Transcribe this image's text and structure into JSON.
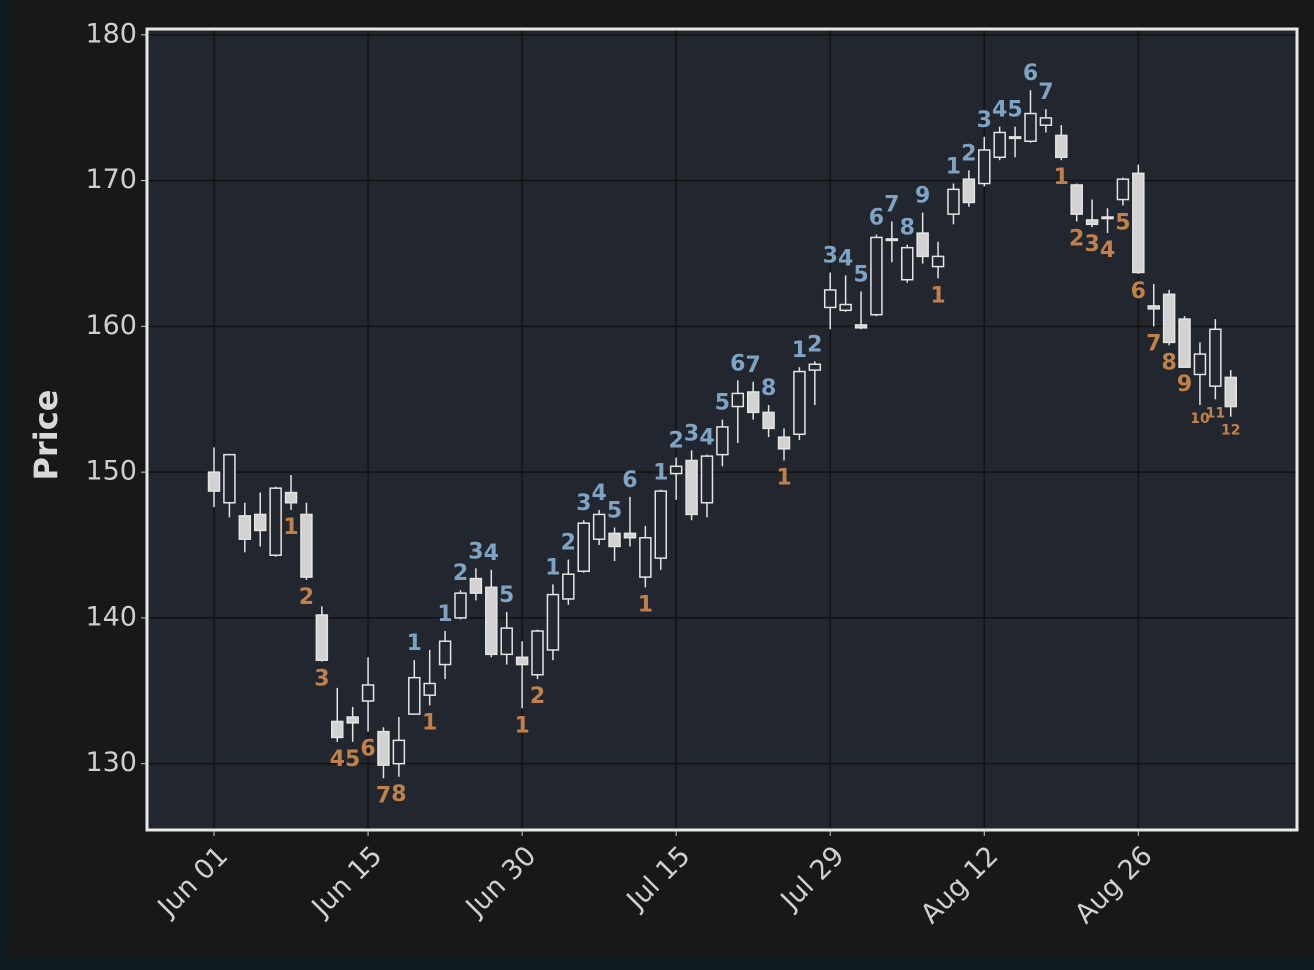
{
  "chart_data": {
    "type": "candlestick",
    "ylabel": "Price",
    "xlim": [
      -4.35,
      70.3
    ],
    "ylim": [
      125.45,
      180.4
    ],
    "xticks": [
      {
        "value": 0,
        "label": "Jun 01"
      },
      {
        "value": 10,
        "label": "Jun 15"
      },
      {
        "value": 20,
        "label": "Jun 30"
      },
      {
        "value": 30,
        "label": "Jul 15"
      },
      {
        "value": 40,
        "label": "Jul 29"
      },
      {
        "value": 50,
        "label": "Aug 12"
      },
      {
        "value": 60,
        "label": "Aug 26"
      }
    ],
    "yticks": [
      130,
      140,
      150,
      160,
      170,
      180
    ],
    "grid": true,
    "up_color": "#23272f",
    "down_color": "#d2d2d2",
    "edge_color": "#e4e4e4",
    "open": [
      150.0,
      147.9,
      147.0,
      147.1,
      144.3,
      148.6,
      147.1,
      140.2,
      132.9,
      133.2,
      134.3,
      132.2,
      130.0,
      133.4,
      134.7,
      136.8,
      140.0,
      142.7,
      142.1,
      137.5,
      137.3,
      136.1,
      137.8,
      141.3,
      143.2,
      145.4,
      145.8,
      145.8,
      142.8,
      144.1,
      149.9,
      150.8,
      147.9,
      151.2,
      154.5,
      155.5,
      154.1,
      152.4,
      152.6,
      157.0,
      161.3,
      161.1,
      160.1,
      160.8,
      166.0,
      163.2,
      166.4,
      164.1,
      167.7,
      170.1,
      169.8,
      171.6,
      172.9,
      172.7,
      173.8,
      173.1,
      169.7,
      167.3,
      167.5,
      168.7,
      170.5,
      161.4,
      162.2,
      160.5,
      156.7,
      155.9,
      156.5
    ],
    "high": [
      151.7,
      151.2,
      147.9,
      148.6,
      149.0,
      149.8,
      147.9,
      140.8,
      135.2,
      133.9,
      137.3,
      132.5,
      133.2,
      137.1,
      137.8,
      139.1,
      141.9,
      143.4,
      143.3,
      140.4,
      138.4,
      139.2,
      142.3,
      144.0,
      146.7,
      147.4,
      146.2,
      148.3,
      146.3,
      148.8,
      151.0,
      151.5,
      151.2,
      153.6,
      156.3,
      156.2,
      154.6,
      153.0,
      157.2,
      157.6,
      163.7,
      163.5,
      162.4,
      166.3,
      167.2,
      165.6,
      167.8,
      165.8,
      169.8,
      170.7,
      173.0,
      173.7,
      173.7,
      176.2,
      174.9,
      173.8,
      169.8,
      168.7,
      168.1,
      170.2,
      171.1,
      162.9,
      162.5,
      160.7,
      158.9,
      160.5,
      157.0
    ],
    "low": [
      147.6,
      146.9,
      144.5,
      144.9,
      144.2,
      147.4,
      142.6,
      137.0,
      131.5,
      131.5,
      132.2,
      129.0,
      129.1,
      133.4,
      134.0,
      135.8,
      139.9,
      141.2,
      137.3,
      136.8,
      133.8,
      135.8,
      137.1,
      140.9,
      143.1,
      145.0,
      143.9,
      144.9,
      142.1,
      143.3,
      148.1,
      146.7,
      146.9,
      150.4,
      152.0,
      153.6,
      152.4,
      150.8,
      152.2,
      154.6,
      159.8,
      161.0,
      159.8,
      160.7,
      164.4,
      163.0,
      164.3,
      163.3,
      167.0,
      168.2,
      169.6,
      171.4,
      171.6,
      172.6,
      173.3,
      171.4,
      167.2,
      166.8,
      166.4,
      168.3,
      163.6,
      160.0,
      158.7,
      157.2,
      154.6,
      155.0,
      153.8
    ],
    "close": [
      148.7,
      151.2,
      145.4,
      146.0,
      148.9,
      147.9,
      142.8,
      137.1,
      131.8,
      132.8,
      135.4,
      129.9,
      131.6,
      135.9,
      135.5,
      138.4,
      141.7,
      141.7,
      137.5,
      139.3,
      136.8,
      139.1,
      141.6,
      143.0,
      146.5,
      147.1,
      144.9,
      145.5,
      145.5,
      148.7,
      150.4,
      147.1,
      151.1,
      153.1,
      155.4,
      154.1,
      153.0,
      151.6,
      156.9,
      157.4,
      162.5,
      161.5,
      159.9,
      166.1,
      165.9,
      165.4,
      164.8,
      164.8,
      169.4,
      168.5,
      172.1,
      173.3,
      173.0,
      174.6,
      174.3,
      171.6,
      167.7,
      167.0,
      167.4,
      170.1,
      163.7,
      161.2,
      158.9,
      157.2,
      158.1,
      159.8,
      154.5
    ],
    "above_color": "#7fa3c3",
    "below_color": "#c0814a",
    "annotations": [
      {
        "x": 5,
        "text": "1",
        "position": "below"
      },
      {
        "x": 6,
        "text": "2",
        "position": "below"
      },
      {
        "x": 7,
        "text": "3",
        "position": "below"
      },
      {
        "x": 8,
        "text": "4",
        "position": "below"
      },
      {
        "x": 9,
        "text": "5",
        "position": "below"
      },
      {
        "x": 10,
        "text": "6",
        "position": "below"
      },
      {
        "x": 11,
        "text": "7",
        "position": "below"
      },
      {
        "x": 12,
        "text": "8",
        "position": "below"
      },
      {
        "x": 13,
        "text": "1",
        "position": "above"
      },
      {
        "x": 14,
        "text": "1",
        "position": "below"
      },
      {
        "x": 15,
        "text": "1",
        "position": "above"
      },
      {
        "x": 16,
        "text": "2",
        "position": "above"
      },
      {
        "x": 17,
        "text": "3",
        "position": "above"
      },
      {
        "x": 18,
        "text": "4",
        "position": "above"
      },
      {
        "x": 19,
        "text": "5",
        "position": "above"
      },
      {
        "x": 20,
        "text": "1",
        "position": "below"
      },
      {
        "x": 21,
        "text": "2",
        "position": "below"
      },
      {
        "x": 22,
        "text": "1",
        "position": "above"
      },
      {
        "x": 23,
        "text": "2",
        "position": "above"
      },
      {
        "x": 24,
        "text": "3",
        "position": "above"
      },
      {
        "x": 25,
        "text": "4",
        "position": "above"
      },
      {
        "x": 26,
        "text": "5",
        "position": "above"
      },
      {
        "x": 27,
        "text": "6",
        "position": "above"
      },
      {
        "x": 28,
        "text": "1",
        "position": "below"
      },
      {
        "x": 29,
        "text": "1",
        "position": "above"
      },
      {
        "x": 30,
        "text": "2",
        "position": "above"
      },
      {
        "x": 31,
        "text": "3",
        "position": "above"
      },
      {
        "x": 32,
        "text": "4",
        "position": "above"
      },
      {
        "x": 33,
        "text": "5",
        "position": "above"
      },
      {
        "x": 34,
        "text": "6",
        "position": "above"
      },
      {
        "x": 35,
        "text": "7",
        "position": "above"
      },
      {
        "x": 36,
        "text": "8",
        "position": "above"
      },
      {
        "x": 37,
        "text": "1",
        "position": "below"
      },
      {
        "x": 38,
        "text": "1",
        "position": "above"
      },
      {
        "x": 39,
        "text": "2",
        "position": "above"
      },
      {
        "x": 40,
        "text": "3",
        "position": "above"
      },
      {
        "x": 41,
        "text": "4",
        "position": "above"
      },
      {
        "x": 42,
        "text": "5",
        "position": "above"
      },
      {
        "x": 43,
        "text": "6",
        "position": "above"
      },
      {
        "x": 44,
        "text": "7",
        "position": "above"
      },
      {
        "x": 45,
        "text": "8",
        "position": "above"
      },
      {
        "x": 46,
        "text": "9",
        "position": "above"
      },
      {
        "x": 47,
        "text": "1",
        "position": "below"
      },
      {
        "x": 48,
        "text": "1",
        "position": "above"
      },
      {
        "x": 49,
        "text": "2",
        "position": "above"
      },
      {
        "x": 50,
        "text": "3",
        "position": "above"
      },
      {
        "x": 51,
        "text": "4",
        "position": "above"
      },
      {
        "x": 52,
        "text": "5",
        "position": "above"
      },
      {
        "x": 53,
        "text": "6",
        "position": "above"
      },
      {
        "x": 54,
        "text": "7",
        "position": "above"
      },
      {
        "x": 55,
        "text": "1",
        "position": "below"
      },
      {
        "x": 56,
        "text": "2",
        "position": "below"
      },
      {
        "x": 57,
        "text": "3",
        "position": "below"
      },
      {
        "x": 58,
        "text": "4",
        "position": "below"
      },
      {
        "x": 59,
        "text": "5",
        "position": "below"
      },
      {
        "x": 60,
        "text": "6",
        "position": "below"
      },
      {
        "x": 61,
        "text": "7",
        "position": "below"
      },
      {
        "x": 62,
        "text": "8",
        "position": "below"
      },
      {
        "x": 63,
        "text": "9",
        "position": "below"
      },
      {
        "x": 64,
        "text": "10",
        "position": "below"
      },
      {
        "x": 65,
        "text": "11",
        "position": "below"
      },
      {
        "x": 66,
        "text": "12",
        "position": "below"
      }
    ]
  }
}
